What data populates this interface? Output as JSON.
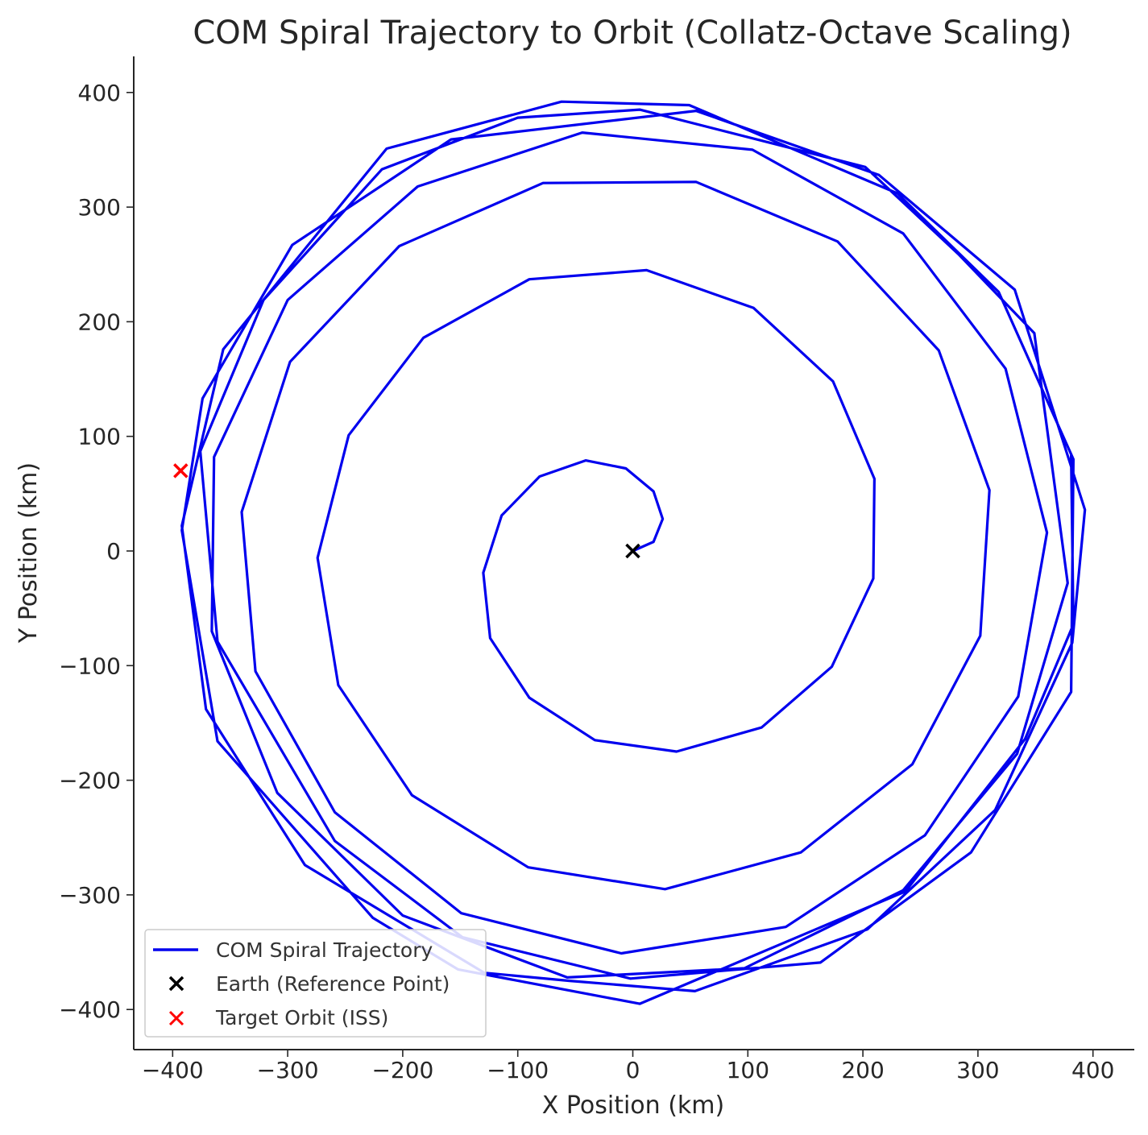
{
  "chart_data": {
    "type": "line",
    "title": "COM Spiral Trajectory to Orbit (Collatz-Octave Scaling)",
    "xlabel": "X Position (km)",
    "ylabel": "Y Position (km)",
    "xlim": [
      -435,
      435
    ],
    "ylim": [
      -433,
      433
    ],
    "xticks": [
      -400,
      -300,
      -200,
      -100,
      0,
      100,
      200,
      300,
      400
    ],
    "yticks": [
      -400,
      -300,
      -200,
      -100,
      0,
      100,
      200,
      300,
      400
    ],
    "grid": false,
    "legend_position": "lower-left",
    "series": [
      {
        "name": "COM Spiral Trajectory",
        "kind": "line",
        "color": "#0000ee",
        "points": [
          [
            0,
            0
          ],
          [
            18,
            8
          ],
          [
            26,
            28
          ],
          [
            18,
            52
          ],
          [
            -6,
            72
          ],
          [
            -41,
            79
          ],
          [
            -81,
            65
          ],
          [
            -114,
            31
          ],
          [
            -130,
            -19
          ],
          [
            -124,
            -76
          ],
          [
            -90,
            -128
          ],
          [
            -33,
            -165
          ],
          [
            38,
            -175
          ],
          [
            112,
            -154
          ],
          [
            173,
            -101
          ],
          [
            209,
            -24
          ],
          [
            210,
            63
          ],
          [
            174,
            148
          ],
          [
            105,
            212
          ],
          [
            12,
            245
          ],
          [
            -90,
            237
          ],
          [
            -182,
            186
          ],
          [
            -247,
            101
          ],
          [
            -274,
            -6
          ],
          [
            -256,
            -117
          ],
          [
            -192,
            -213
          ],
          [
            -91,
            -276
          ],
          [
            28,
            -295
          ],
          [
            146,
            -263
          ],
          [
            243,
            -186
          ],
          [
            302,
            -74
          ],
          [
            310,
            53
          ],
          [
            266,
            175
          ],
          [
            178,
            270
          ],
          [
            55,
            322
          ],
          [
            -78,
            321
          ],
          [
            -203,
            266
          ],
          [
            -298,
            165
          ],
          [
            -340,
            34
          ],
          [
            -328,
            -105
          ],
          [
            -259,
            -228
          ],
          [
            -149,
            -316
          ],
          [
            -10,
            -351
          ],
          [
            133,
            -328
          ],
          [
            254,
            -248
          ],
          [
            335,
            -127
          ],
          [
            360,
            16
          ],
          [
            324,
            159
          ],
          [
            235,
            277
          ],
          [
            104,
            350
          ],
          [
            -44,
            365
          ],
          [
            -187,
            318
          ],
          [
            -300,
            219
          ],
          [
            -364,
            82
          ],
          [
            -366,
            -70
          ],
          [
            -309,
            -211
          ],
          [
            -200,
            -318
          ],
          [
            -57,
            -372
          ],
          [
            97,
            -364
          ],
          [
            235,
            -296
          ],
          [
            334,
            -177
          ],
          [
            378,
            -28
          ],
          [
            349,
            190
          ],
          [
            283,
            259
          ],
          [
            202,
            335
          ],
          [
            6,
            385
          ],
          [
            -100,
            378
          ],
          [
            -218,
            333
          ],
          [
            -321,
            219
          ],
          [
            -376,
            87
          ],
          [
            -361,
            -79
          ],
          [
            -259,
            -253
          ],
          [
            -148,
            -337
          ],
          [
            -2,
            -373
          ],
          [
            163,
            -359
          ],
          [
            294,
            -263
          ],
          [
            381,
            -123
          ],
          [
            383,
            80
          ],
          [
            318,
            226
          ],
          [
            230,
            312
          ],
          [
            49,
            389
          ],
          [
            -62,
            392
          ],
          [
            -214,
            351
          ],
          [
            -356,
            176
          ],
          [
            -392,
            22
          ],
          [
            -371,
            -138
          ],
          [
            -285,
            -274
          ],
          [
            -129,
            -368
          ],
          [
            -55,
            -375
          ],
          [
            54,
            -384
          ],
          [
            204,
            -330
          ],
          [
            315,
            -226
          ],
          [
            382,
            -80
          ],
          [
            393,
            36
          ],
          [
            332,
            228
          ],
          [
            214,
            328
          ],
          [
            55,
            384
          ],
          [
            -158,
            359
          ],
          [
            -296,
            267
          ],
          [
            -374,
            133
          ],
          [
            -392,
            18
          ],
          [
            -361,
            -166
          ],
          [
            -226,
            -320
          ],
          [
            -152,
            -365
          ],
          [
            6,
            -395
          ],
          [
            237,
            -297
          ],
          [
            341,
            -164
          ],
          [
            383,
            -64
          ],
          [
            381,
            83
          ]
        ]
      },
      {
        "name": "Earth (Reference Point)",
        "kind": "marker",
        "color": "#000000",
        "points": [
          [
            0,
            0
          ]
        ]
      },
      {
        "name": "Target Orbit (ISS)",
        "kind": "marker",
        "color": "#ff0000",
        "points": [
          [
            -393,
            70
          ]
        ]
      }
    ]
  }
}
